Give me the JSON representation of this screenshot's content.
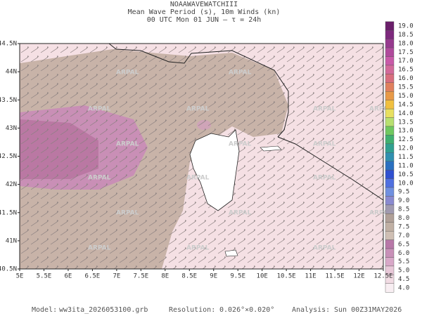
{
  "header": {
    "lines": [
      "NOAAWAVEWATCHIII",
      "Mean Wave Period (s), 10m Winds (kn)",
      "00 UTC Mon 01 JUN  –  τ = 24h"
    ]
  },
  "map": {
    "x_labels": [
      "5E",
      "5.5E",
      "6E",
      "6.5E",
      "7E",
      "7.5E",
      "8E",
      "8.5E",
      "9E",
      "9.5E",
      "10E",
      "10.5E",
      "11E",
      "11.5E",
      "12E",
      "12.5E"
    ],
    "y_labels": [
      "44.5N",
      "44N",
      "43.5N",
      "43N",
      "42.5N",
      "42N",
      "41.5N",
      "41N",
      "40.5N"
    ],
    "watermark": "ARPAL"
  },
  "colorbar": {
    "labels": [
      "19.0",
      "18.5",
      "18.0",
      "17.5",
      "17.0",
      "16.5",
      "16.0",
      "15.5",
      "15.0",
      "14.5",
      "14.0",
      "13.5",
      "13.0",
      "12.5",
      "12.0",
      "11.5",
      "11.0",
      "10.5",
      "10.0",
      "9.5",
      "9.0",
      "8.5",
      "8.0",
      "7.5",
      "7.0",
      "6.5",
      "6.0",
      "5.5",
      "5.0",
      "4.5",
      "4.0"
    ],
    "colors": [
      "#6a1f6a",
      "#7d2a7d",
      "#963a8e",
      "#b04a9c",
      "#c85aa8",
      "#d26a9a",
      "#d86e7e",
      "#e0805e",
      "#e89a48",
      "#f0c040",
      "#e8e060",
      "#b8e070",
      "#70c860",
      "#40b070",
      "#30a090",
      "#3090b0",
      "#2a70c0",
      "#3050d0",
      "#5070e0",
      "#7090e0",
      "#8a8ad0",
      "#a09ab0",
      "#b0a098",
      "#c0b0a4",
      "#cfbfb4",
      "#b878a8",
      "#c890b8",
      "#d8a8c8",
      "#e8c8d8",
      "#f2dce4",
      "#f8eef2"
    ]
  },
  "footer": {
    "model_label": "Model:",
    "model": "ww3ita_2026053100.grb",
    "resolution_label": "Resolution:",
    "resolution": "0.026°×0.020°",
    "analysis_label": "Analysis:",
    "analysis": "Sun 00Z31MAY2026"
  }
}
